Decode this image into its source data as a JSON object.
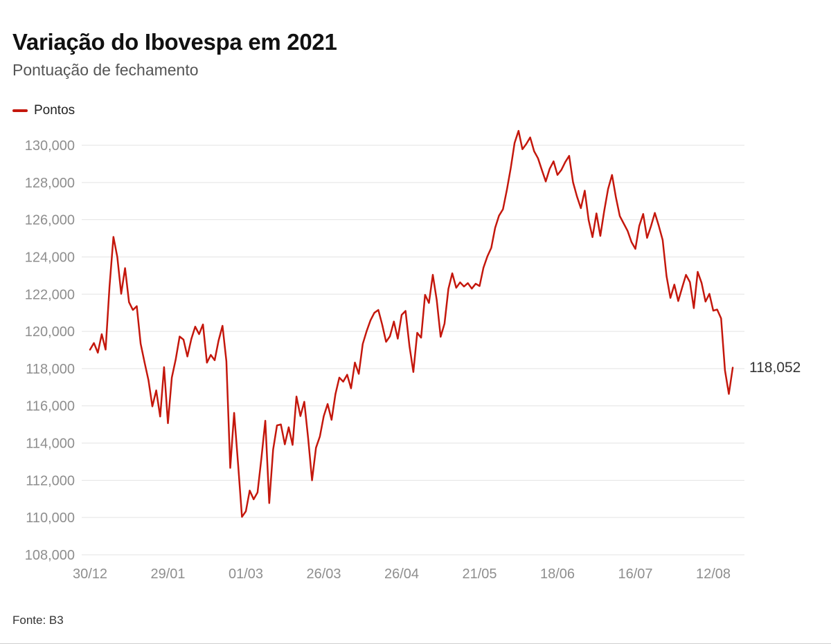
{
  "header": {
    "title": "Variação do Ibovespa em 2021",
    "subtitle": "Pontuação de fechamento"
  },
  "legend": {
    "label": "Pontos",
    "color": "#c4170c"
  },
  "footer": {
    "source": "Fonte: B3"
  },
  "chart_data": {
    "type": "line",
    "title": "Variação do Ibovespa em 2021",
    "subtitle": "Pontuação de fechamento",
    "series_name": "Pontos",
    "color": "#c4170c",
    "grid": true,
    "legend_position": "top-left",
    "ylim": [
      108000,
      130000
    ],
    "ytick_step": 2000,
    "yticks": [
      108000,
      110000,
      112000,
      114000,
      116000,
      118000,
      120000,
      122000,
      124000,
      126000,
      128000,
      130000
    ],
    "xticks": [
      {
        "label": "30/12",
        "index": 0
      },
      {
        "label": "29/01",
        "index": 20
      },
      {
        "label": "01/03",
        "index": 40
      },
      {
        "label": "26/03",
        "index": 60
      },
      {
        "label": "26/04",
        "index": 80
      },
      {
        "label": "21/05",
        "index": 100
      },
      {
        "label": "18/06",
        "index": 120
      },
      {
        "label": "16/07",
        "index": 140
      },
      {
        "label": "12/08",
        "index": 160
      }
    ],
    "end_label": "118,052",
    "last_value": 118052,
    "values": [
      119017,
      119376,
      118854,
      119851,
      119024,
      122386,
      125077,
      123998,
      122023,
      123400,
      121572,
      121150,
      121355,
      119337,
      118327,
      117380,
      115973,
      116831,
      115424,
      118077,
      115067,
      117518,
      118508,
      119723,
      119558,
      118649,
      119596,
      120257,
      119850,
      120376,
      118320,
      118736,
      118452,
      119500,
      120302,
      118400,
      112667,
      115621,
      112877,
      110035,
      110334,
      111450,
      110980,
      111350,
      113200,
      115202,
      110776,
      113650,
      114950,
      115000,
      113930,
      114850,
      113900,
      116500,
      115450,
      116220,
      114250,
      112000,
      113750,
      114356,
      115448,
      116100,
      115250,
      116634,
      117518,
      117302,
      117672,
      116940,
      118328,
      117717,
      119325,
      120012,
      120595,
      121000,
      121150,
      120365,
      119442,
      119738,
      120530,
      119608,
      120885,
      121100,
      119210,
      117817,
      119925,
      119661,
      121966,
      121531,
      123038,
      121702,
      119710,
      120419,
      122282,
      123123,
      122343,
      122636,
      122412,
      122592,
      122301,
      122560,
      122437,
      123420,
      124032,
      124486,
      125561,
      126216,
      126562,
      127593,
      128767,
      130126,
      130776,
      129787,
      130071,
      130421,
      129680,
      129302,
      128668,
      128057,
      128740,
      129137,
      128405,
      128672,
      129100,
      129431,
      128013,
      127256,
      126618,
      127561,
      125982,
      125066,
      126341,
      125133,
      126468,
      127652,
      128405,
      127200,
      126200,
      125800,
      125400,
      124800,
      124433,
      125666,
      126310,
      125023,
      125650,
      126365,
      125675,
      124911,
      122973,
      121801,
      122515,
      121632,
      122343,
      123041,
      122646,
      121247,
      123198,
      122610,
      121600,
      122016,
      121115,
      121175,
      120700,
      117903,
      116642,
      118052
    ]
  }
}
